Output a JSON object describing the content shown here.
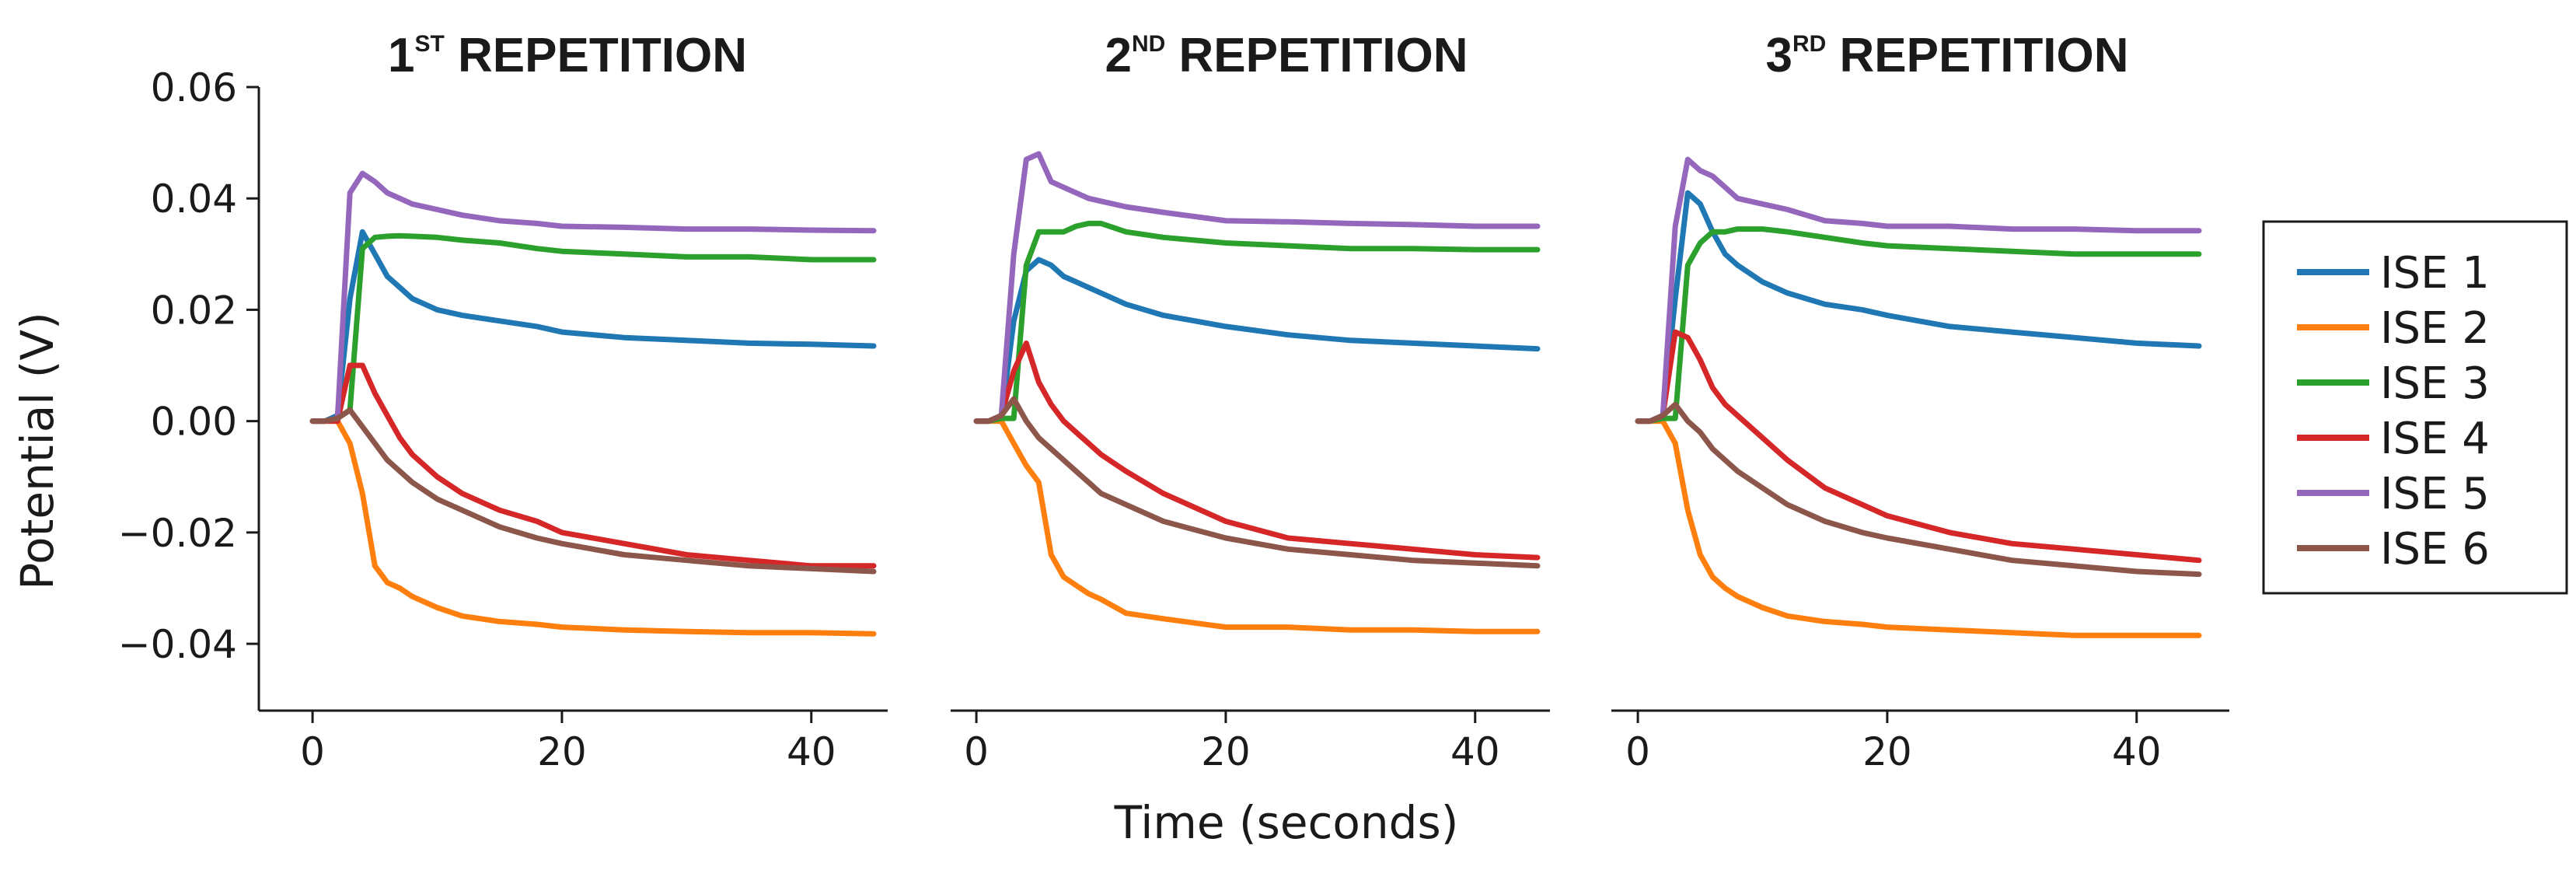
{
  "figure": {
    "xlabel": "Time (seconds)",
    "ylabel": "Potential (V)"
  },
  "legend": {
    "placement": "right",
    "entries": [
      {
        "label": "ISE 1",
        "color": "#1f77b4"
      },
      {
        "label": "ISE 2",
        "color": "#ff7f0e"
      },
      {
        "label": "ISE 3",
        "color": "#2ca02c"
      },
      {
        "label": "ISE 4",
        "color": "#d62728"
      },
      {
        "label": "ISE 5",
        "color": "#9467bd"
      },
      {
        "label": "ISE 6",
        "color": "#8c564b"
      }
    ]
  },
  "chart_data": [
    {
      "type": "line",
      "title_main": "1",
      "title_sup": "ST",
      "title_rest": " REPETITION",
      "xlabel": "Time (seconds)",
      "ylabel": "Potential (V)",
      "xlim": [
        -2,
        46
      ],
      "ylim": [
        -0.052,
        0.06
      ],
      "xticks": [
        "0",
        "20",
        "40"
      ],
      "xtick_values": [
        0,
        20,
        40
      ],
      "yticks": [
        "0.06",
        "0.04",
        "0.02",
        "0.00",
        "−0.02",
        "−0.04"
      ],
      "ytick_values": [
        0.06,
        0.04,
        0.02,
        0.0,
        -0.02,
        -0.04
      ],
      "x": [
        0,
        1,
        2,
        3,
        4,
        5,
        6,
        7,
        8,
        10,
        12,
        15,
        18,
        20,
        25,
        30,
        35,
        40,
        45
      ],
      "series": [
        {
          "name": "ISE 1",
          "color": "#1f77b4",
          "values": [
            0,
            0,
            0.001,
            0.022,
            0.034,
            0.03,
            0.026,
            0.024,
            0.022,
            0.02,
            0.019,
            0.018,
            0.017,
            0.016,
            0.015,
            0.0145,
            0.014,
            0.0138,
            0.0135
          ]
        },
        {
          "name": "ISE 2",
          "color": "#ff7f0e",
          "values": [
            0,
            0,
            0,
            -0.004,
            -0.013,
            -0.026,
            -0.029,
            -0.03,
            -0.0315,
            -0.0335,
            -0.035,
            -0.036,
            -0.0365,
            -0.037,
            -0.0375,
            -0.0378,
            -0.038,
            -0.038,
            -0.0382
          ]
        },
        {
          "name": "ISE 3",
          "color": "#2ca02c",
          "values": [
            0,
            0,
            0.0005,
            0.002,
            0.031,
            0.033,
            0.0332,
            0.0333,
            0.0332,
            0.033,
            0.0325,
            0.032,
            0.031,
            0.0305,
            0.03,
            0.0295,
            0.0295,
            0.029,
            0.029
          ]
        },
        {
          "name": "ISE 4",
          "color": "#d62728",
          "values": [
            0,
            0,
            0,
            0.01,
            0.01,
            0.005,
            0.001,
            -0.003,
            -0.006,
            -0.01,
            -0.013,
            -0.016,
            -0.018,
            -0.02,
            -0.022,
            -0.024,
            -0.025,
            -0.026,
            -0.026
          ]
        },
        {
          "name": "ISE 5",
          "color": "#9467bd",
          "values": [
            0,
            0,
            0.0005,
            0.041,
            0.0445,
            0.043,
            0.041,
            0.04,
            0.039,
            0.038,
            0.037,
            0.036,
            0.0355,
            0.035,
            0.0348,
            0.0345,
            0.0345,
            0.0343,
            0.0342
          ]
        },
        {
          "name": "ISE 6",
          "color": "#8c564b",
          "values": [
            0,
            0,
            0.0005,
            0.002,
            -0.001,
            -0.004,
            -0.007,
            -0.009,
            -0.011,
            -0.014,
            -0.016,
            -0.019,
            -0.021,
            -0.022,
            -0.024,
            -0.025,
            -0.026,
            -0.0265,
            -0.027
          ]
        }
      ]
    },
    {
      "type": "line",
      "title_main": "2",
      "title_sup": "ND",
      "title_rest": " REPETITION",
      "xlabel": "Time (seconds)",
      "ylabel": "Potential (V)",
      "xlim": [
        -2,
        46
      ],
      "ylim": [
        -0.052,
        0.06
      ],
      "xticks": [
        "0",
        "20",
        "40"
      ],
      "xtick_values": [
        0,
        20,
        40
      ],
      "x": [
        0,
        1,
        2,
        3,
        4,
        5,
        6,
        7,
        8,
        9,
        10,
        12,
        15,
        20,
        25,
        30,
        35,
        40,
        45
      ],
      "series": [
        {
          "name": "ISE 1",
          "color": "#1f77b4",
          "values": [
            0,
            0,
            0.0005,
            0.018,
            0.027,
            0.029,
            0.028,
            0.026,
            0.025,
            0.024,
            0.023,
            0.021,
            0.019,
            0.017,
            0.0155,
            0.0145,
            0.014,
            0.0135,
            0.013
          ]
        },
        {
          "name": "ISE 2",
          "color": "#ff7f0e",
          "values": [
            0,
            0,
            0,
            -0.004,
            -0.008,
            -0.011,
            -0.024,
            -0.028,
            -0.0295,
            -0.031,
            -0.032,
            -0.0345,
            -0.0355,
            -0.037,
            -0.037,
            -0.0375,
            -0.0375,
            -0.0378,
            -0.0378
          ]
        },
        {
          "name": "ISE 3",
          "color": "#2ca02c",
          "values": [
            0,
            0,
            0.0005,
            0.0005,
            0.028,
            0.034,
            0.034,
            0.034,
            0.035,
            0.0355,
            0.0355,
            0.034,
            0.033,
            0.032,
            0.0315,
            0.031,
            0.031,
            0.0308,
            0.0308
          ]
        },
        {
          "name": "ISE 4",
          "color": "#d62728",
          "values": [
            0,
            0,
            0.001,
            0.009,
            0.014,
            0.007,
            0.003,
            0.0,
            -0.002,
            -0.004,
            -0.006,
            -0.009,
            -0.013,
            -0.018,
            -0.021,
            -0.022,
            -0.023,
            -0.024,
            -0.0245
          ]
        },
        {
          "name": "ISE 5",
          "color": "#9467bd",
          "values": [
            0,
            0,
            0.001,
            0.03,
            0.047,
            0.048,
            0.043,
            0.042,
            0.041,
            0.04,
            0.0395,
            0.0385,
            0.0375,
            0.036,
            0.0358,
            0.0355,
            0.0353,
            0.035,
            0.035
          ]
        },
        {
          "name": "ISE 6",
          "color": "#8c564b",
          "values": [
            0,
            0,
            0.001,
            0.004,
            0.0,
            -0.003,
            -0.005,
            -0.007,
            -0.009,
            -0.011,
            -0.013,
            -0.015,
            -0.018,
            -0.021,
            -0.023,
            -0.024,
            -0.025,
            -0.0255,
            -0.026
          ]
        }
      ]
    },
    {
      "type": "line",
      "title_main": "3",
      "title_sup": "RD",
      "title_rest": " REPETITION",
      "xlabel": "Time (seconds)",
      "ylabel": "Potential (V)",
      "xlim": [
        -2,
        46
      ],
      "ylim": [
        -0.052,
        0.06
      ],
      "xticks": [
        "0",
        "20",
        "40"
      ],
      "xtick_values": [
        0,
        20,
        40
      ],
      "x": [
        0,
        1,
        2,
        3,
        4,
        5,
        6,
        7,
        8,
        10,
        12,
        15,
        18,
        20,
        25,
        30,
        35,
        40,
        45
      ],
      "series": [
        {
          "name": "ISE 1",
          "color": "#1f77b4",
          "values": [
            0,
            0,
            0.001,
            0.022,
            0.041,
            0.039,
            0.034,
            0.03,
            0.028,
            0.025,
            0.023,
            0.021,
            0.02,
            0.019,
            0.017,
            0.016,
            0.015,
            0.014,
            0.0135
          ]
        },
        {
          "name": "ISE 2",
          "color": "#ff7f0e",
          "values": [
            0,
            0,
            0,
            -0.004,
            -0.016,
            -0.024,
            -0.028,
            -0.03,
            -0.0315,
            -0.0335,
            -0.035,
            -0.036,
            -0.0365,
            -0.037,
            -0.0375,
            -0.038,
            -0.0385,
            -0.0385,
            -0.0385
          ]
        },
        {
          "name": "ISE 3",
          "color": "#2ca02c",
          "values": [
            0,
            0,
            0.0005,
            0.0005,
            0.028,
            0.032,
            0.034,
            0.034,
            0.0345,
            0.0345,
            0.034,
            0.033,
            0.032,
            0.0315,
            0.031,
            0.0305,
            0.03,
            0.03,
            0.03
          ]
        },
        {
          "name": "ISE 4",
          "color": "#d62728",
          "values": [
            0,
            0,
            0.001,
            0.016,
            0.015,
            0.011,
            0.006,
            0.003,
            0.001,
            -0.003,
            -0.007,
            -0.012,
            -0.015,
            -0.017,
            -0.02,
            -0.022,
            -0.023,
            -0.024,
            -0.025
          ]
        },
        {
          "name": "ISE 5",
          "color": "#9467bd",
          "values": [
            0,
            0,
            0.001,
            0.035,
            0.047,
            0.045,
            0.044,
            0.042,
            0.04,
            0.039,
            0.038,
            0.036,
            0.0355,
            0.035,
            0.035,
            0.0345,
            0.0345,
            0.0342,
            0.0342
          ]
        },
        {
          "name": "ISE 6",
          "color": "#8c564b",
          "values": [
            0,
            0,
            0.001,
            0.003,
            0.0,
            -0.002,
            -0.005,
            -0.007,
            -0.009,
            -0.012,
            -0.015,
            -0.018,
            -0.02,
            -0.021,
            -0.023,
            -0.025,
            -0.026,
            -0.027,
            -0.0275
          ]
        }
      ]
    }
  ]
}
